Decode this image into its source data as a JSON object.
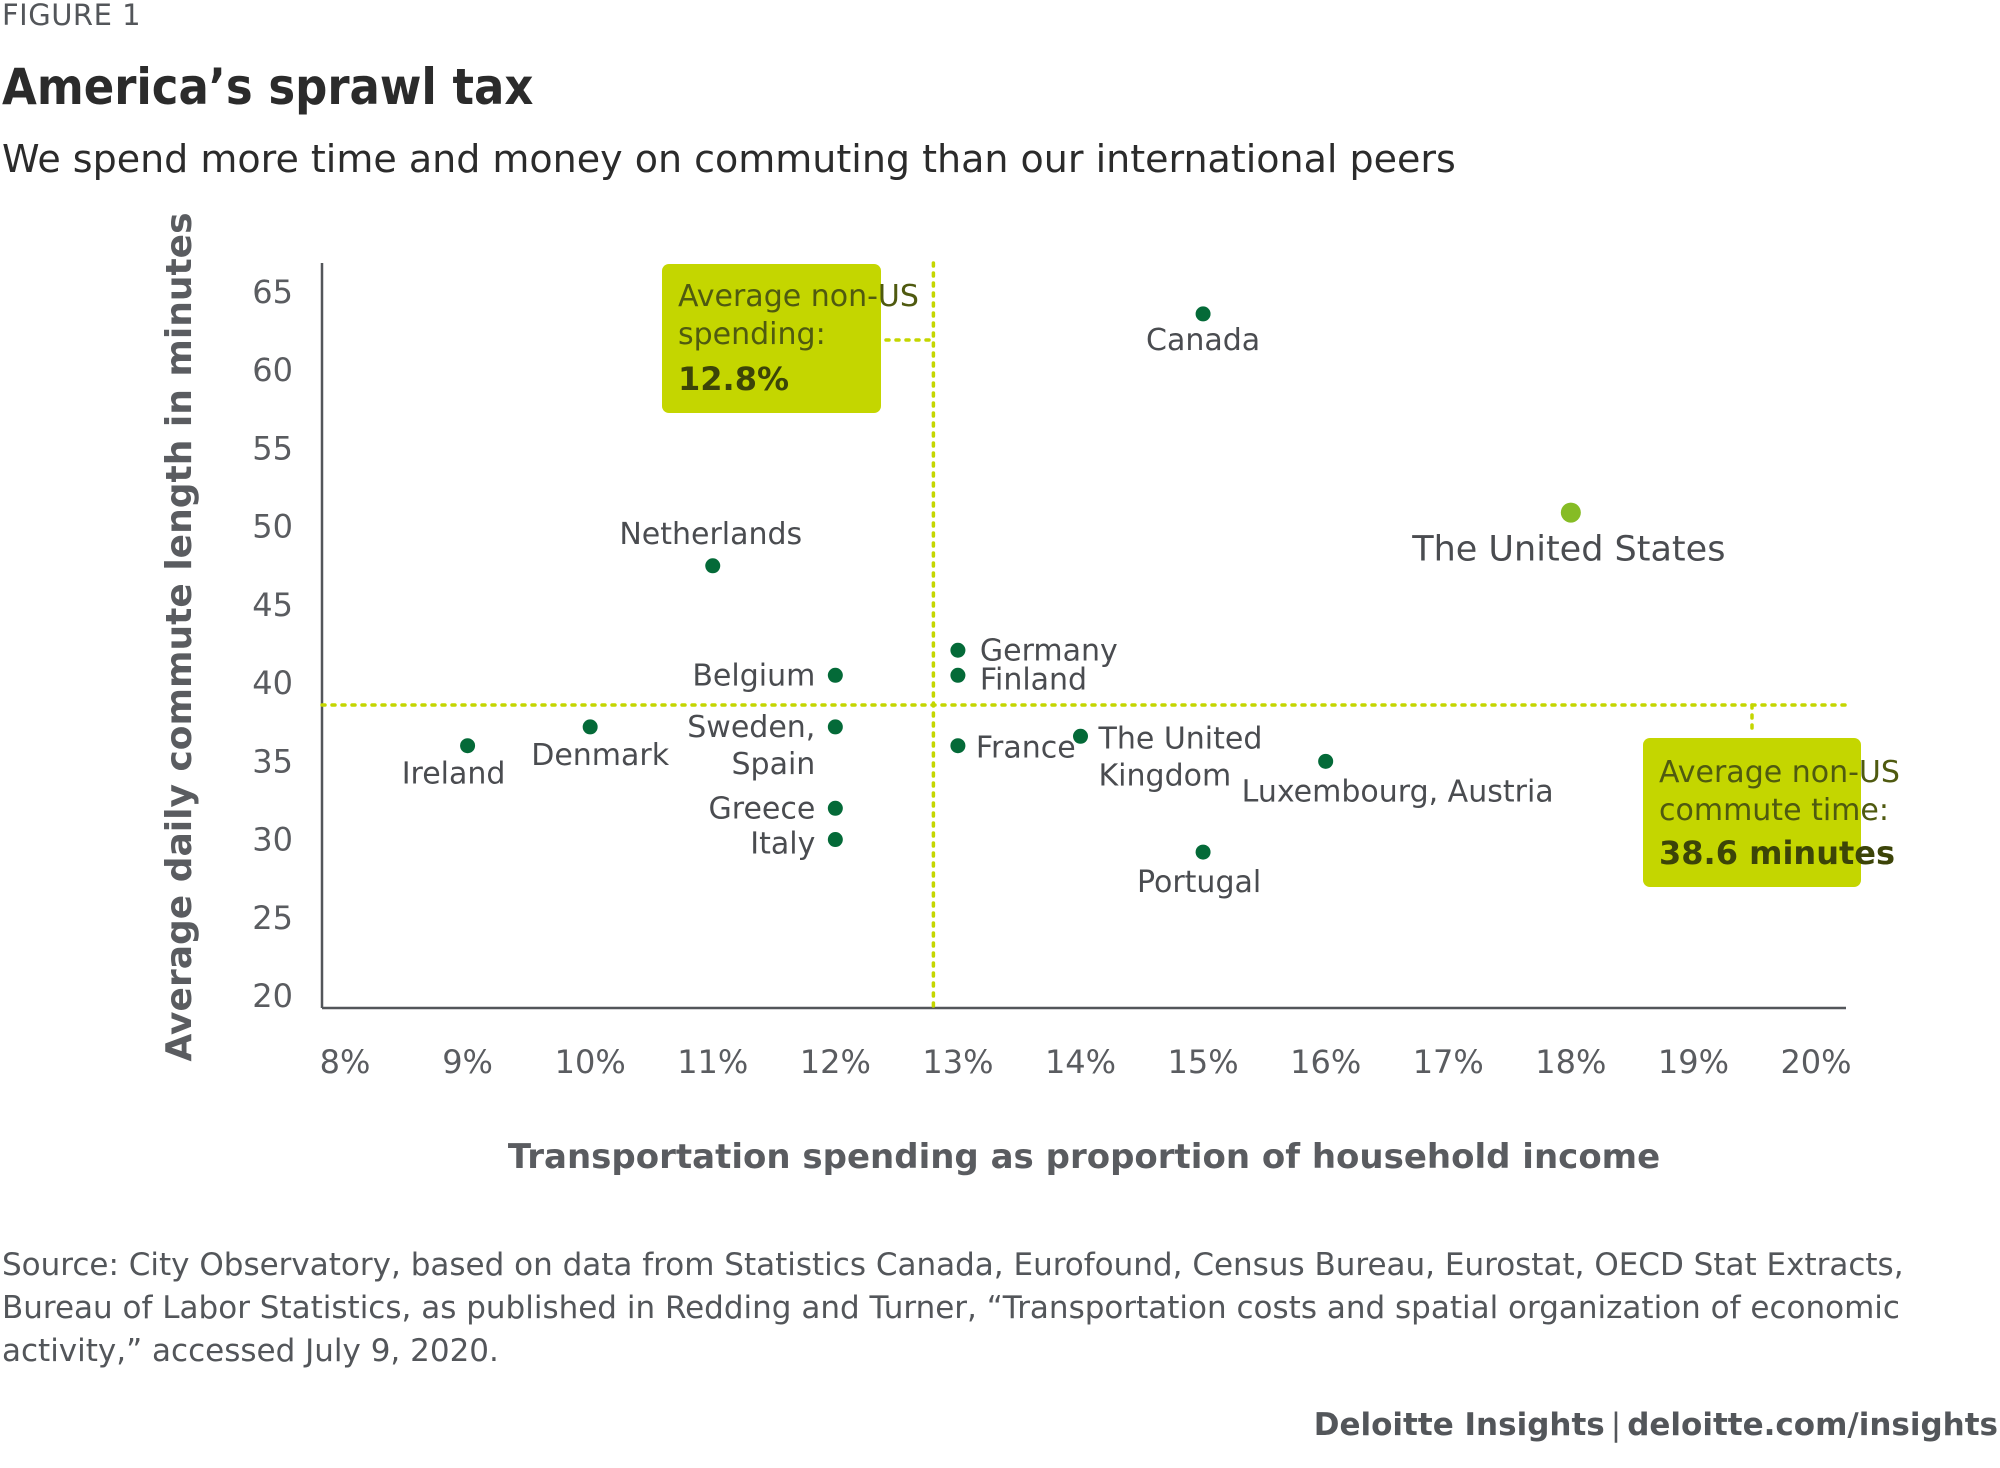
{
  "figure_label": "FIGURE 1",
  "title": "America’s sprawl tax",
  "subtitle": "We spend more time and money on commuting than our international peers",
  "chart_data": {
    "type": "scatter",
    "xlabel": "Transportation spending as proportion of household income",
    "ylabel": "Average daily commute length in minutes",
    "xlim": [
      8,
      20
    ],
    "ylim": [
      20,
      65
    ],
    "x_ticks": [
      "8%",
      "9%",
      "10%",
      "11%",
      "12%",
      "13%",
      "14%",
      "15%",
      "16%",
      "17%",
      "18%",
      "19%",
      "20%"
    ],
    "y_ticks": [
      "65",
      "60",
      "55",
      "50",
      "45",
      "40",
      "35",
      "30",
      "25",
      "20"
    ],
    "points": [
      {
        "label": "Canada",
        "x": 15.0,
        "y": 63.6
      },
      {
        "label": "The United States",
        "x": 18.0,
        "y": 50.9,
        "highlight": true
      },
      {
        "label": "Netherlands",
        "x": 11.0,
        "y": 47.5
      },
      {
        "label": "Germany",
        "x": 13.0,
        "y": 42.1
      },
      {
        "label": "Finland",
        "x": 13.0,
        "y": 40.5
      },
      {
        "label": "Belgium",
        "x": 12.0,
        "y": 40.5
      },
      {
        "label": "Denmark",
        "x": 10.0,
        "y": 37.2
      },
      {
        "label": "Sweden, Spain",
        "x": 12.0,
        "y": 37.2
      },
      {
        "label": "Ireland",
        "x": 9.0,
        "y": 36.0
      },
      {
        "label": "France",
        "x": 13.0,
        "y": 36.0
      },
      {
        "label": "The United Kingdom",
        "x": 14.0,
        "y": 36.6
      },
      {
        "label": "Luxembourg, Austria",
        "x": 16.0,
        "y": 35.0
      },
      {
        "label": "Greece",
        "x": 12.0,
        "y": 32.0
      },
      {
        "label": "Italy",
        "x": 12.0,
        "y": 30.0
      },
      {
        "label": "Portugal",
        "x": 15.0,
        "y": 29.2
      }
    ],
    "reference_lines": [
      {
        "axis": "x",
        "value": 12.8,
        "callout": [
          "Average non-US",
          "spending:"
        ],
        "callout_value": "12.8%"
      },
      {
        "axis": "y",
        "value": 38.6,
        "callout": [
          "Average non-US",
          "commute time:"
        ],
        "callout_value": "38.6 minutes"
      }
    ],
    "colors": {
      "point": "#046a38",
      "highlight": "#86bc25",
      "reference": "#c4d600",
      "callout_bg": "#c4d600",
      "axis": "#53565a"
    }
  },
  "source": "Source: City Observatory, based on data from Statistics Canada, Eurofound, Census Bureau, Eurostat, OECD Stat Extracts, Bureau of Labor Statistics, as published in Redding and Turner, “Transportation costs and spatial organization of economic activity,” accessed July 9, 2020.",
  "credit": {
    "brand": "Deloitte Insights",
    "separator": "|",
    "url": "deloitte.com/insights"
  }
}
